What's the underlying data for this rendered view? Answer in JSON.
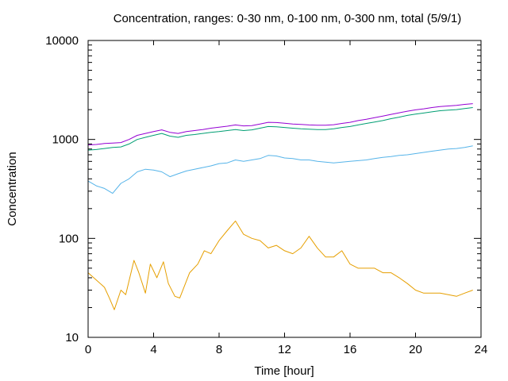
{
  "chart_data": {
    "type": "line",
    "title": "Concentration, ranges: 0-30 nm, 0-100 nm, 0-300 nm, total (5/9/1)",
    "xlabel": "Time [hour]",
    "ylabel": "Concentration",
    "xlim": [
      0,
      24
    ],
    "ylim": [
      10,
      10000
    ],
    "yscale": "log",
    "grid": false,
    "legend": "none",
    "xticks": [
      {
        "value": 0,
        "label": "0"
      },
      {
        "value": 4,
        "label": "4"
      },
      {
        "value": 8,
        "label": "8"
      },
      {
        "value": 12,
        "label": "12"
      },
      {
        "value": 16,
        "label": "16"
      },
      {
        "value": 20,
        "label": "20"
      },
      {
        "value": 24,
        "label": "24"
      }
    ],
    "yticks": [
      {
        "value": 10,
        "label": "10"
      },
      {
        "value": 100,
        "label": "100"
      },
      {
        "value": 1000,
        "label": "1000"
      },
      {
        "value": 10000,
        "label": "10000"
      }
    ],
    "series": [
      {
        "color": "#e69f00",
        "points": [
          [
            0,
            45
          ],
          [
            0.5,
            38
          ],
          [
            1,
            32
          ],
          [
            1.3,
            25
          ],
          [
            1.6,
            19
          ],
          [
            2,
            30
          ],
          [
            2.3,
            27
          ],
          [
            2.8,
            60
          ],
          [
            3.1,
            45
          ],
          [
            3.5,
            28
          ],
          [
            3.8,
            55
          ],
          [
            4.2,
            40
          ],
          [
            4.6,
            58
          ],
          [
            4.9,
            35
          ],
          [
            5.3,
            26
          ],
          [
            5.6,
            25
          ],
          [
            6.2,
            45
          ],
          [
            6.7,
            55
          ],
          [
            7.1,
            75
          ],
          [
            7.5,
            70
          ],
          [
            8,
            95
          ],
          [
            8.5,
            120
          ],
          [
            9,
            150
          ],
          [
            9.5,
            110
          ],
          [
            10,
            100
          ],
          [
            10.5,
            95
          ],
          [
            11,
            80
          ],
          [
            11.5,
            85
          ],
          [
            12,
            75
          ],
          [
            12.5,
            70
          ],
          [
            13,
            80
          ],
          [
            13.5,
            105
          ],
          [
            14,
            80
          ],
          [
            14.5,
            65
          ],
          [
            15,
            65
          ],
          [
            15.5,
            75
          ],
          [
            16,
            55
          ],
          [
            16.5,
            50
          ],
          [
            17,
            50
          ],
          [
            17.5,
            50
          ],
          [
            18,
            45
          ],
          [
            18.5,
            45
          ],
          [
            19,
            40
          ],
          [
            19.5,
            35
          ],
          [
            20,
            30
          ],
          [
            20.5,
            28
          ],
          [
            21,
            28
          ],
          [
            21.5,
            28
          ],
          [
            22,
            27
          ],
          [
            22.5,
            26
          ],
          [
            23,
            28
          ],
          [
            23.5,
            30
          ]
        ]
      },
      {
        "color": "#56b4e9",
        "points": [
          [
            0,
            380
          ],
          [
            0.5,
            340
          ],
          [
            1,
            320
          ],
          [
            1.5,
            285
          ],
          [
            2,
            360
          ],
          [
            2.5,
            400
          ],
          [
            3,
            470
          ],
          [
            3.5,
            500
          ],
          [
            4,
            490
          ],
          [
            4.5,
            470
          ],
          [
            5,
            420
          ],
          [
            5.5,
            450
          ],
          [
            6,
            480
          ],
          [
            6.5,
            500
          ],
          [
            7,
            520
          ],
          [
            7.5,
            540
          ],
          [
            8,
            570
          ],
          [
            8.5,
            580
          ],
          [
            9,
            620
          ],
          [
            9.5,
            600
          ],
          [
            10,
            620
          ],
          [
            10.5,
            640
          ],
          [
            11,
            690
          ],
          [
            11.5,
            680
          ],
          [
            12,
            650
          ],
          [
            12.5,
            640
          ],
          [
            13,
            620
          ],
          [
            13.5,
            620
          ],
          [
            14,
            600
          ],
          [
            14.5,
            590
          ],
          [
            15,
            580
          ],
          [
            15.5,
            590
          ],
          [
            16,
            600
          ],
          [
            16.5,
            610
          ],
          [
            17,
            620
          ],
          [
            17.5,
            640
          ],
          [
            18,
            660
          ],
          [
            18.5,
            670
          ],
          [
            19,
            690
          ],
          [
            19.5,
            700
          ],
          [
            20,
            720
          ],
          [
            20.5,
            740
          ],
          [
            21,
            760
          ],
          [
            21.5,
            780
          ],
          [
            22,
            800
          ],
          [
            22.5,
            810
          ],
          [
            23,
            830
          ],
          [
            23.5,
            860
          ]
        ]
      },
      {
        "color": "#009e73",
        "points": [
          [
            0,
            780
          ],
          [
            0.5,
            790
          ],
          [
            1,
            810
          ],
          [
            1.5,
            830
          ],
          [
            2,
            840
          ],
          [
            2.5,
            900
          ],
          [
            3,
            1000
          ],
          [
            3.5,
            1050
          ],
          [
            4,
            1100
          ],
          [
            4.5,
            1150
          ],
          [
            5,
            1080
          ],
          [
            5.5,
            1050
          ],
          [
            6,
            1100
          ],
          [
            6.5,
            1120
          ],
          [
            7,
            1150
          ],
          [
            7.5,
            1180
          ],
          [
            8,
            1200
          ],
          [
            8.5,
            1230
          ],
          [
            9,
            1260
          ],
          [
            9.5,
            1230
          ],
          [
            10,
            1250
          ],
          [
            10.5,
            1300
          ],
          [
            11,
            1350
          ],
          [
            11.5,
            1340
          ],
          [
            12,
            1320
          ],
          [
            12.5,
            1300
          ],
          [
            13,
            1280
          ],
          [
            13.5,
            1270
          ],
          [
            14,
            1260
          ],
          [
            14.5,
            1260
          ],
          [
            15,
            1280
          ],
          [
            15.5,
            1320
          ],
          [
            16,
            1350
          ],
          [
            16.5,
            1400
          ],
          [
            17,
            1450
          ],
          [
            17.5,
            1500
          ],
          [
            18,
            1550
          ],
          [
            18.5,
            1620
          ],
          [
            19,
            1680
          ],
          [
            19.5,
            1750
          ],
          [
            20,
            1800
          ],
          [
            20.5,
            1850
          ],
          [
            21,
            1900
          ],
          [
            21.5,
            1950
          ],
          [
            22,
            1980
          ],
          [
            22.5,
            2000
          ],
          [
            23,
            2050
          ],
          [
            23.5,
            2100
          ]
        ]
      },
      {
        "color": "#9400d3",
        "points": [
          [
            0,
            880
          ],
          [
            0.5,
            890
          ],
          [
            1,
            910
          ],
          [
            1.5,
            920
          ],
          [
            2,
            930
          ],
          [
            2.5,
            1000
          ],
          [
            3,
            1100
          ],
          [
            3.5,
            1150
          ],
          [
            4,
            1200
          ],
          [
            4.5,
            1250
          ],
          [
            5,
            1180
          ],
          [
            5.5,
            1150
          ],
          [
            6,
            1200
          ],
          [
            6.5,
            1230
          ],
          [
            7,
            1260
          ],
          [
            7.5,
            1300
          ],
          [
            8,
            1330
          ],
          [
            8.5,
            1360
          ],
          [
            9,
            1400
          ],
          [
            9.5,
            1370
          ],
          [
            10,
            1380
          ],
          [
            10.5,
            1430
          ],
          [
            11,
            1490
          ],
          [
            11.5,
            1480
          ],
          [
            12,
            1460
          ],
          [
            12.5,
            1430
          ],
          [
            13,
            1420
          ],
          [
            13.5,
            1400
          ],
          [
            14,
            1390
          ],
          [
            14.5,
            1390
          ],
          [
            15,
            1410
          ],
          [
            15.5,
            1450
          ],
          [
            16,
            1490
          ],
          [
            16.5,
            1550
          ],
          [
            17,
            1600
          ],
          [
            17.5,
            1660
          ],
          [
            18,
            1720
          ],
          [
            18.5,
            1790
          ],
          [
            19,
            1860
          ],
          [
            19.5,
            1930
          ],
          [
            20,
            1990
          ],
          [
            20.5,
            2040
          ],
          [
            21,
            2100
          ],
          [
            21.5,
            2150
          ],
          [
            22,
            2180
          ],
          [
            22.5,
            2210
          ],
          [
            23,
            2260
          ],
          [
            23.5,
            2300
          ]
        ]
      }
    ]
  }
}
